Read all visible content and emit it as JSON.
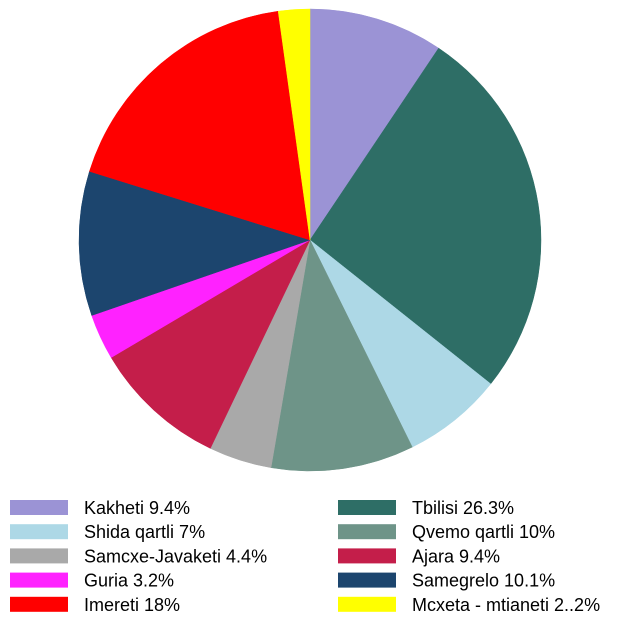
{
  "chart_data": {
    "type": "pie",
    "title": "",
    "start_angle_deg": 0,
    "direction": "clockwise",
    "slices": [
      {
        "label": "Kakheti 9.4%",
        "value": 9.4,
        "color": "#9B93D5"
      },
      {
        "label": "Tbilisi 26.3%",
        "value": 26.3,
        "color": "#2E6E66"
      },
      {
        "label": "Shida qartli 7%",
        "value": 7.0,
        "color": "#ADD8E6"
      },
      {
        "label": "Qvemo qartli 10%",
        "value": 10.0,
        "color": "#6E9488"
      },
      {
        "label": "Samcxe-Javaketi 4.4%",
        "value": 4.4,
        "color": "#A9A9A9"
      },
      {
        "label": "Ajara 9.4%",
        "value": 9.4,
        "color": "#C41E4A"
      },
      {
        "label": "Guria 3.2%",
        "value": 3.2,
        "color": "#FF22FF"
      },
      {
        "label": "Samegrelo 10.1%",
        "value": 10.1,
        "color": "#1C456E"
      },
      {
        "label": "Imereti 18%",
        "value": 18.0,
        "color": "#FF0000"
      },
      {
        "label": "Mcxeta - mtianeti 2..2%",
        "value": 2.2,
        "color": "#FFFF00"
      }
    ],
    "legend": {
      "placement": "bottom",
      "columns": 2
    }
  }
}
